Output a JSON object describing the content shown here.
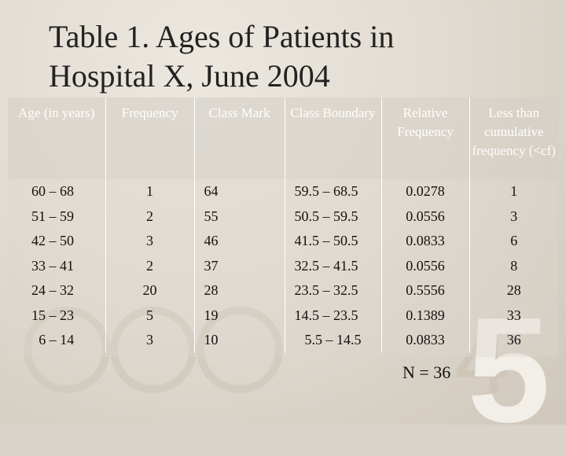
{
  "title": {
    "line1": "Table 1. Ages of Patients in",
    "line2": "Hospital X, June 2004"
  },
  "table": {
    "headers": {
      "age": "Age (in years)",
      "frequency": "Frequency",
      "class_mark": "Class Mark",
      "class_boundary": "Class Boundary",
      "relative_frequency": "Relative Frequency",
      "less_than_cf": "Less than cumulative frequency (<cf)"
    },
    "rows": [
      {
        "age": "60 – 68",
        "frequency": "1",
        "class_mark": "64",
        "class_boundary": "59.5 – 68.5",
        "relative_frequency": "0.0278",
        "less_than_cf": "1"
      },
      {
        "age": "51 – 59",
        "frequency": "2",
        "class_mark": "55",
        "class_boundary": "50.5 – 59.5",
        "relative_frequency": "0.0556",
        "less_than_cf": "3"
      },
      {
        "age": "42 – 50",
        "frequency": "3",
        "class_mark": "46",
        "class_boundary": "41.5 – 50.5",
        "relative_frequency": "0.0833",
        "less_than_cf": "6"
      },
      {
        "age": "33 – 41",
        "frequency": "2",
        "class_mark": "37",
        "class_boundary": "32.5 – 41.5",
        "relative_frequency": "0.0556",
        "less_than_cf": "8"
      },
      {
        "age": "24 – 32",
        "frequency": "20",
        "class_mark": "28",
        "class_boundary": "23.5 – 32.5",
        "relative_frequency": "0.5556",
        "less_than_cf": "28"
      },
      {
        "age": "15 – 23",
        "frequency": "5",
        "class_mark": "19",
        "class_boundary": "14.5 – 23.5",
        "relative_frequency": "0.1389",
        "less_than_cf": "33"
      },
      {
        "age": "6 – 14",
        "frequency": "3",
        "class_mark": "10",
        "class_boundary": "5.5 – 14.5",
        "relative_frequency": "0.0833",
        "less_than_cf": "36"
      }
    ]
  },
  "footnote": "N = 36"
}
